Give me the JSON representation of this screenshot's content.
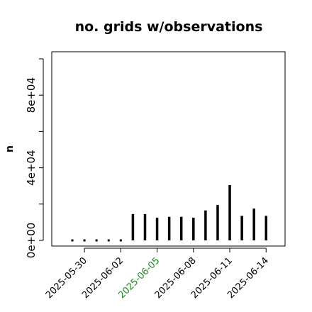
{
  "chart_data": {
    "type": "bar",
    "title": "no. grids w/observations",
    "xlabel": "",
    "ylabel": "n",
    "dates": [
      "2025-05-29",
      "2025-05-30",
      "2025-05-31",
      "2025-06-01",
      "2025-06-02",
      "2025-06-03",
      "2025-06-04",
      "2025-06-05",
      "2025-06-06",
      "2025-06-07",
      "2025-06-08",
      "2025-06-09",
      "2025-06-10",
      "2025-06-11",
      "2025-06-12",
      "2025-06-13",
      "2025-06-14"
    ],
    "values": [
      0,
      0,
      0,
      0,
      0,
      14500,
      14500,
      12500,
      13000,
      13000,
      12500,
      16500,
      19500,
      30500,
      13500,
      17500,
      13500
    ],
    "ylim": [
      0,
      100000
    ],
    "yticks": [
      {
        "value": 0,
        "label": "0e+00"
      },
      {
        "value": 40000,
        "label": "4e+04"
      },
      {
        "value": 80000,
        "label": "8e+04"
      }
    ],
    "xticks": [
      {
        "date": "2025-05-30",
        "label": "2025-05-30",
        "color": "#000000"
      },
      {
        "date": "2025-06-02",
        "label": "2025-06-02",
        "color": "#000000"
      },
      {
        "date": "2025-06-05",
        "label": "2025-06-05",
        "color": "#228b22"
      },
      {
        "date": "2025-06-08",
        "label": "2025-06-08",
        "color": "#000000"
      },
      {
        "date": "2025-06-11",
        "label": "2025-06-11",
        "color": "#000000"
      },
      {
        "date": "2025-06-14",
        "label": "2025-06-14",
        "color": "#000000"
      }
    ],
    "bar_color": "#000000",
    "grid": false
  }
}
